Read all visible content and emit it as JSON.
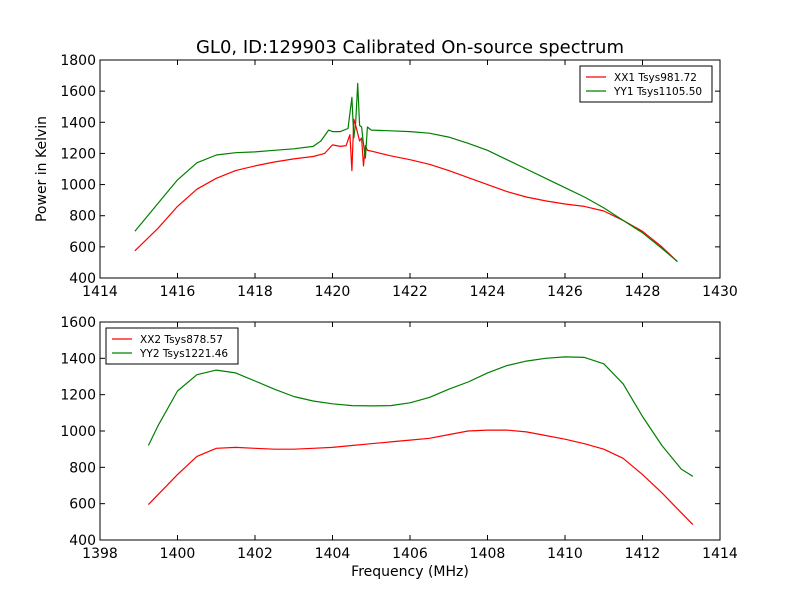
{
  "chart_data": [
    {
      "type": "line",
      "title": "GL0, ID:129903 Calibrated On-source spectrum",
      "xlabel": "",
      "ylabel": "Power in Kelvin",
      "xlim": [
        1414,
        1430
      ],
      "ylim": [
        400,
        1800
      ],
      "xticks": [
        "1414",
        "1416",
        "1418",
        "1420",
        "1422",
        "1424",
        "1426",
        "1428",
        "1430"
      ],
      "yticks": [
        "400",
        "600",
        "800",
        "1000",
        "1200",
        "1400",
        "1600",
        "1800"
      ],
      "legend_position": "top-right",
      "grid": false,
      "series": [
        {
          "name": "XX1 Tsys981.72",
          "color": "#ff0000",
          "x": [
            1414.9,
            1415.5,
            1416,
            1416.5,
            1417,
            1417.5,
            1418,
            1418.5,
            1419,
            1419.5,
            1419.8,
            1420,
            1420.2,
            1420.35,
            1420.45,
            1420.5,
            1420.55,
            1420.6,
            1420.7,
            1420.75,
            1420.8,
            1420.85,
            1420.9,
            1421,
            1421.5,
            1422,
            1422.5,
            1423,
            1423.5,
            1424,
            1424.5,
            1425,
            1425.5,
            1426,
            1426.5,
            1427,
            1427.5,
            1428,
            1428.5,
            1428.9
          ],
          "y": [
            575,
            720,
            860,
            970,
            1040,
            1090,
            1120,
            1145,
            1165,
            1180,
            1200,
            1255,
            1245,
            1250,
            1320,
            1090,
            1420,
            1380,
            1280,
            1300,
            1120,
            1250,
            1220,
            1215,
            1185,
            1160,
            1130,
            1090,
            1045,
            1000,
            955,
            920,
            895,
            875,
            860,
            830,
            770,
            700,
            600,
            505
          ]
        },
        {
          "name": "YY1 Tsys1105.50",
          "color": "#008000",
          "x": [
            1414.9,
            1415.5,
            1416,
            1416.5,
            1417,
            1417.5,
            1418,
            1418.5,
            1419,
            1419.5,
            1419.7,
            1419.9,
            1420,
            1420.2,
            1420.4,
            1420.5,
            1420.55,
            1420.6,
            1420.65,
            1420.7,
            1420.75,
            1420.8,
            1420.85,
            1420.9,
            1421,
            1421.5,
            1422,
            1422.5,
            1423,
            1423.5,
            1424,
            1424.5,
            1425,
            1425.5,
            1426,
            1426.5,
            1427,
            1427.5,
            1428,
            1428.5,
            1428.9
          ],
          "y": [
            700,
            880,
            1030,
            1140,
            1190,
            1205,
            1210,
            1220,
            1230,
            1245,
            1280,
            1350,
            1340,
            1340,
            1360,
            1560,
            1300,
            1400,
            1650,
            1380,
            1370,
            1260,
            1170,
            1370,
            1350,
            1345,
            1340,
            1330,
            1305,
            1265,
            1220,
            1160,
            1100,
            1040,
            980,
            920,
            850,
            770,
            690,
            590,
            505
          ]
        }
      ]
    },
    {
      "type": "line",
      "title": "",
      "xlabel": "Frequency (MHz)",
      "ylabel": "",
      "xlim": [
        1398,
        1414
      ],
      "ylim": [
        400,
        1600
      ],
      "xticks": [
        "1398",
        "1400",
        "1402",
        "1404",
        "1406",
        "1408",
        "1410",
        "1412",
        "1414"
      ],
      "yticks": [
        "400",
        "600",
        "800",
        "1000",
        "1200",
        "1400",
        "1600"
      ],
      "legend_position": "top-left",
      "grid": false,
      "series": [
        {
          "name": "XX2 Tsys878.57",
          "color": "#ff0000",
          "x": [
            1399.25,
            1399.5,
            1400,
            1400.5,
            1401,
            1401.5,
            1402,
            1402.5,
            1403,
            1403.5,
            1404,
            1404.5,
            1405,
            1405.5,
            1406,
            1406.5,
            1407,
            1407.5,
            1408,
            1408.5,
            1409,
            1409.5,
            1410,
            1410.5,
            1411,
            1411.5,
            1412,
            1412.5,
            1413,
            1413.3
          ],
          "y": [
            595,
            650,
            760,
            860,
            905,
            910,
            905,
            900,
            900,
            905,
            910,
            920,
            930,
            940,
            950,
            960,
            980,
            1000,
            1005,
            1005,
            995,
            975,
            955,
            930,
            900,
            850,
            760,
            660,
            550,
            485
          ]
        },
        {
          "name": "YY2 Tsys1221.46",
          "color": "#008000",
          "x": [
            1399.25,
            1399.5,
            1400,
            1400.5,
            1401,
            1401.5,
            1402,
            1402.5,
            1403,
            1403.5,
            1404,
            1404.5,
            1405,
            1405.5,
            1406,
            1406.5,
            1407,
            1407.5,
            1408,
            1408.5,
            1409,
            1409.5,
            1410,
            1410.5,
            1411,
            1411.5,
            1412,
            1412.5,
            1413,
            1413.3
          ],
          "y": [
            920,
            1030,
            1220,
            1310,
            1335,
            1320,
            1275,
            1230,
            1190,
            1165,
            1150,
            1140,
            1138,
            1140,
            1155,
            1185,
            1230,
            1270,
            1320,
            1360,
            1385,
            1400,
            1408,
            1405,
            1370,
            1260,
            1080,
            920,
            790,
            750
          ]
        }
      ]
    }
  ]
}
